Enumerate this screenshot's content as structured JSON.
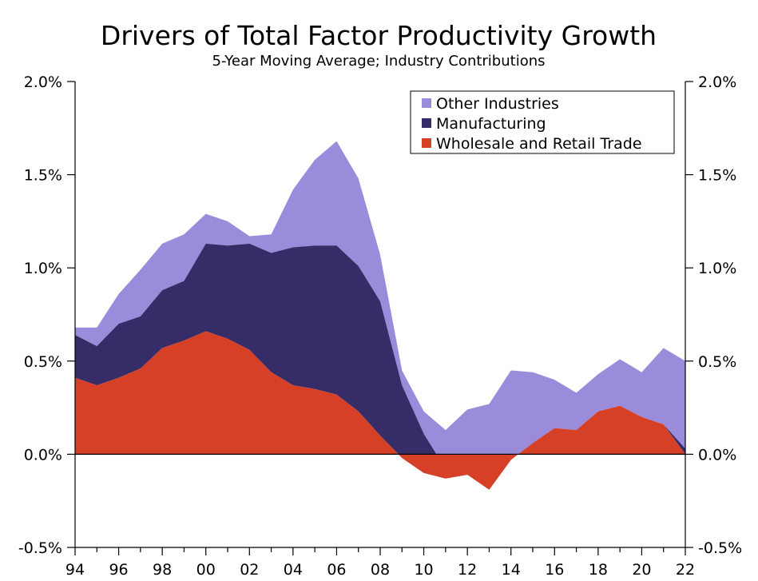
{
  "chart_data": {
    "type": "area",
    "title": "Drivers of Total Factor Productivity Growth",
    "subtitle": "5-Year Moving Average; Industry Contributions",
    "x": [
      94,
      95,
      96,
      97,
      98,
      99,
      100,
      101,
      102,
      103,
      104,
      105,
      106,
      107,
      108,
      109,
      110,
      111,
      112,
      113,
      114,
      115,
      116,
      117,
      118,
      119,
      120,
      121,
      122
    ],
    "x_tick_labels": [
      "94",
      "96",
      "98",
      "00",
      "02",
      "04",
      "06",
      "08",
      "10",
      "12",
      "14",
      "16",
      "18",
      "20",
      "22"
    ],
    "y_tick_labels": [
      "-0.5%",
      "0.0%",
      "0.5%",
      "1.0%",
      "1.5%",
      "2.0%"
    ],
    "ylim": [
      -0.5,
      2.0
    ],
    "y_unit": "%",
    "series": [
      {
        "name": "Wholesale and Retail Trade",
        "color": "#d64027",
        "values": [
          0.41,
          0.37,
          0.41,
          0.46,
          0.57,
          0.61,
          0.66,
          0.62,
          0.56,
          0.44,
          0.37,
          0.35,
          0.32,
          0.23,
          0.1,
          -0.02,
          -0.1,
          -0.13,
          -0.11,
          -0.19,
          -0.03,
          0.06,
          0.14,
          0.13,
          0.23,
          0.26,
          0.2,
          0.16,
          0.0
        ]
      },
      {
        "name": "Manufacturing",
        "color": "#352c68",
        "values": [
          0.23,
          0.21,
          0.29,
          0.28,
          0.31,
          0.32,
          0.47,
          0.5,
          0.57,
          0.64,
          0.74,
          0.77,
          0.8,
          0.78,
          0.72,
          0.39,
          0.21,
          0.05,
          0.0,
          0.0,
          0.0,
          0.0,
          0.0,
          0.0,
          0.0,
          0.0,
          0.0,
          0.0,
          0.03
        ]
      },
      {
        "name": "Other Industries",
        "color": "#9b8cdb",
        "values": [
          0.04,
          0.1,
          0.16,
          0.25,
          0.25,
          0.25,
          0.16,
          0.13,
          0.04,
          0.1,
          0.31,
          0.46,
          0.56,
          0.47,
          0.25,
          0.08,
          0.12,
          0.21,
          0.35,
          0.46,
          0.48,
          0.38,
          0.26,
          0.2,
          0.2,
          0.25,
          0.24,
          0.41,
          0.47
        ]
      }
    ],
    "legend_position": "top-right",
    "grid": false
  }
}
